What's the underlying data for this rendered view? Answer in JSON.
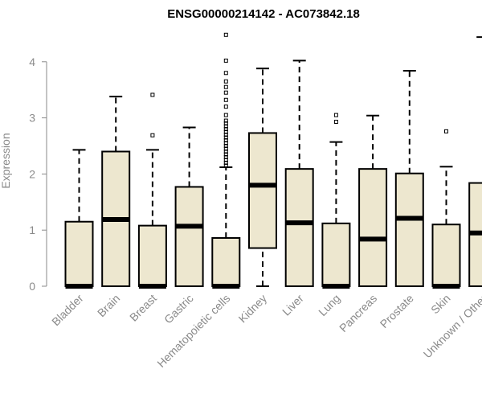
{
  "chart_data": {
    "type": "box",
    "title": "ENSG00000214142 - AC073842.18",
    "xlabel": "",
    "ylabel": "Expression",
    "ylim": [
      0,
      4.5
    ],
    "yticks": [
      0,
      1,
      2,
      3,
      4
    ],
    "categories": [
      "Bladder",
      "Brain",
      "Breast",
      "Gastric",
      "Hematopoietic cells",
      "Kidney",
      "Liver",
      "Lung",
      "Pancreas",
      "Prostate",
      "Skin",
      "Unknown / Other"
    ],
    "box_fill": "#ede7cf",
    "series": [
      {
        "category": "Bladder",
        "min": 0,
        "q1": 0,
        "median": 0.0,
        "q3": 1.15,
        "max": 2.43,
        "outliers": []
      },
      {
        "category": "Brain",
        "min": 0,
        "q1": 0,
        "median": 1.19,
        "q3": 2.4,
        "max": 3.38,
        "outliers": []
      },
      {
        "category": "Breast",
        "min": 0,
        "q1": 0,
        "median": 0.0,
        "q3": 1.08,
        "max": 2.43,
        "outliers": [
          2.69,
          3.41
        ]
      },
      {
        "category": "Gastric",
        "min": 0,
        "q1": 0,
        "median": 1.07,
        "q3": 1.77,
        "max": 2.83,
        "outliers": []
      },
      {
        "category": "Hematopoietic cells",
        "min": 0,
        "q1": 0,
        "median": 0.0,
        "q3": 0.86,
        "max": 2.12,
        "outliers": [
          2.15,
          2.2,
          2.25,
          2.3,
          2.35,
          2.4,
          2.45,
          2.5,
          2.55,
          2.6,
          2.65,
          2.7,
          2.75,
          2.8,
          2.85,
          2.9,
          2.95,
          3.05,
          3.2,
          3.32,
          3.45,
          3.55,
          3.65,
          3.8,
          4.02,
          4.48
        ]
      },
      {
        "category": "Kidney",
        "min": 0,
        "q1": 0.68,
        "median": 1.8,
        "q3": 2.73,
        "max": 3.88,
        "outliers": []
      },
      {
        "category": "Liver",
        "min": 0,
        "q1": 0,
        "median": 1.13,
        "q3": 2.09,
        "max": 4.02,
        "outliers": []
      },
      {
        "category": "Lung",
        "min": 0,
        "q1": 0,
        "median": 0.0,
        "q3": 1.12,
        "max": 2.57,
        "outliers": [
          2.93,
          3.05
        ]
      },
      {
        "category": "Pancreas",
        "min": 0,
        "q1": 0,
        "median": 0.84,
        "q3": 2.09,
        "max": 3.04,
        "outliers": []
      },
      {
        "category": "Prostate",
        "min": 0,
        "q1": 0,
        "median": 1.21,
        "q3": 2.01,
        "max": 3.84,
        "outliers": []
      },
      {
        "category": "Skin",
        "min": 0,
        "q1": 0,
        "median": 0.0,
        "q3": 1.1,
        "max": 2.13,
        "outliers": [
          2.76
        ]
      },
      {
        "category": "Unknown / Other",
        "min": 0,
        "q1": 0,
        "median": 0.95,
        "q3": 1.84,
        "max": 4.44,
        "outliers": []
      }
    ]
  }
}
